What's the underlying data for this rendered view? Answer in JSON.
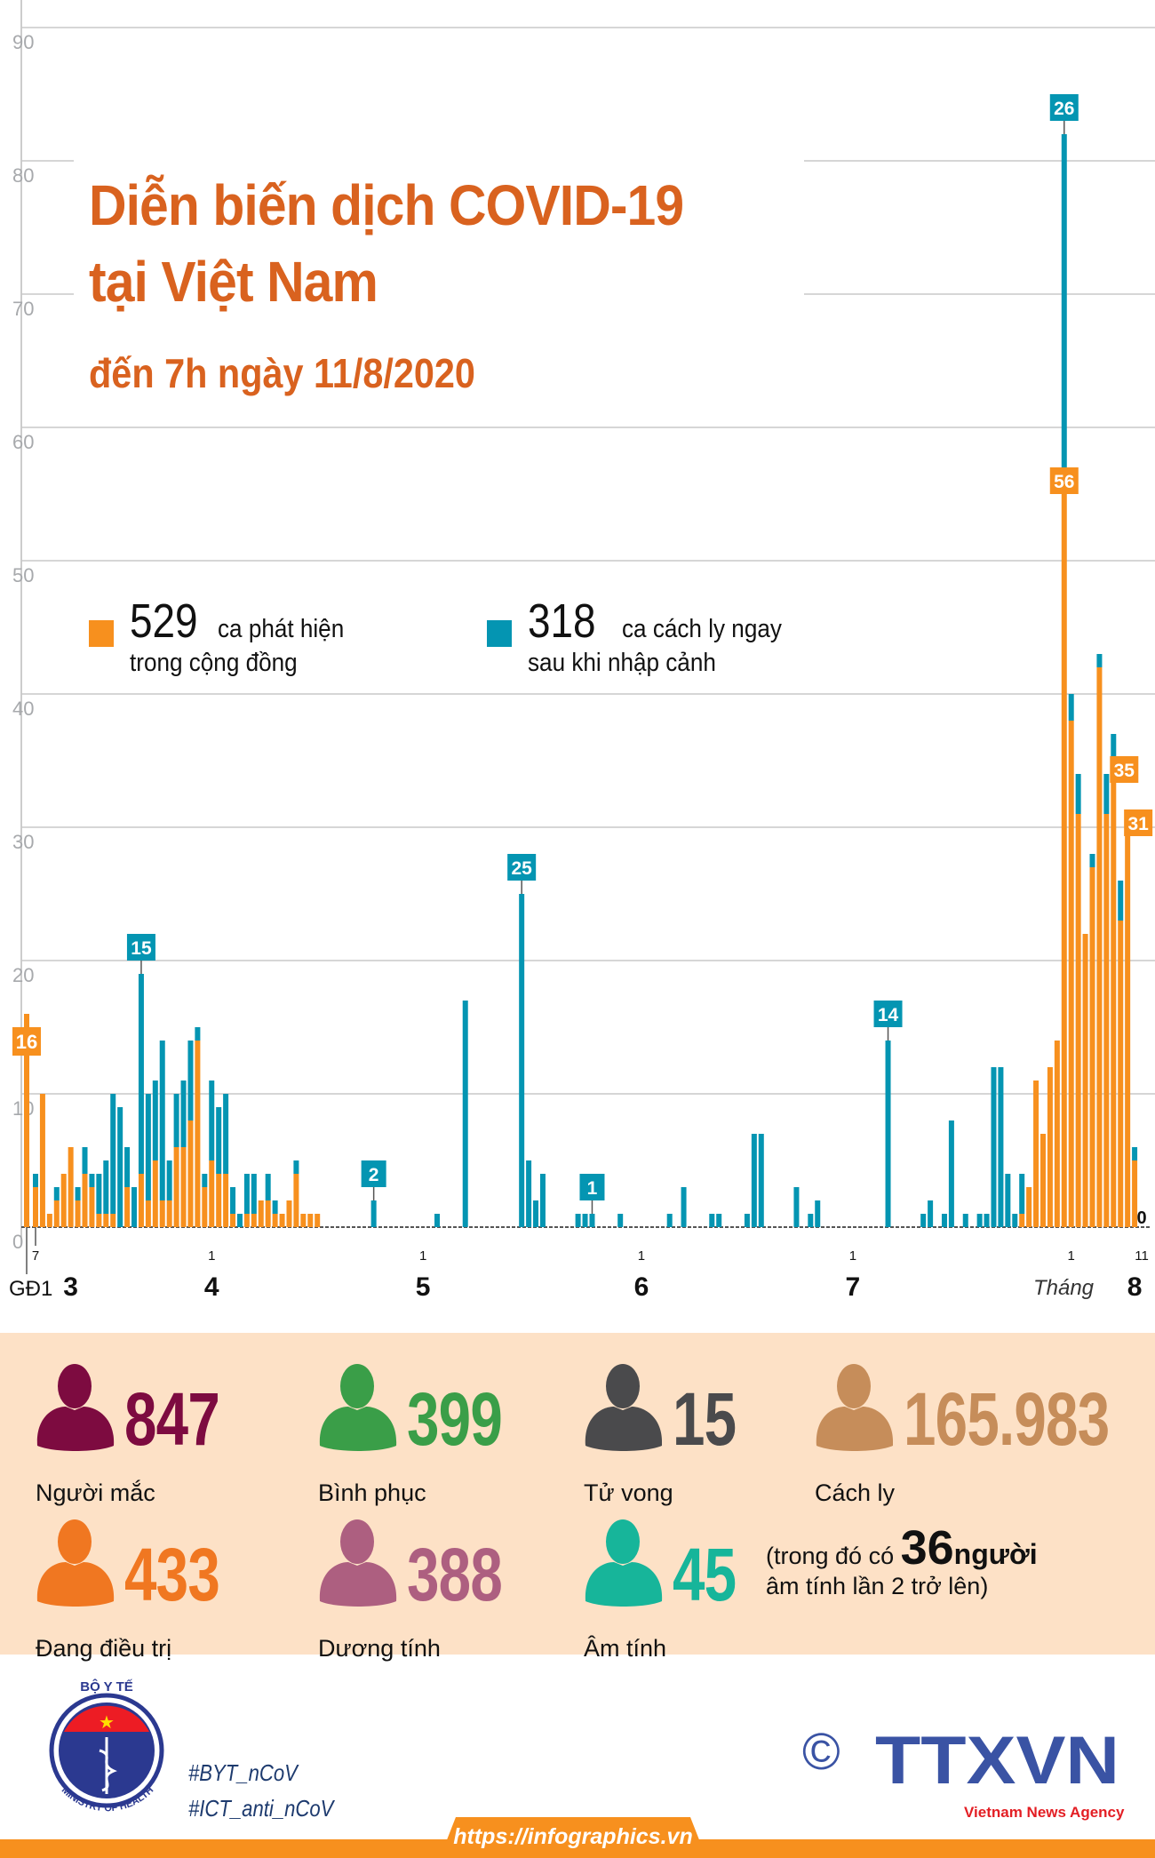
{
  "header": {
    "title_line1": "Diễn biến dịch COVID-19",
    "title_line2": "tại Việt Nam",
    "subtitle": "đến 7h ngày 11/8/2020"
  },
  "legend": [
    {
      "number": "529",
      "text1": "ca phát hiện",
      "text2": "trong cộng đồng",
      "color": "#f7901e"
    },
    {
      "number": "318",
      "text1": "ca cách ly ngay",
      "text2": "sau khi nhập cảnh",
      "color": "#0495b2"
    }
  ],
  "chart_data": {
    "type": "bar",
    "stacked": true,
    "ylim": [
      0,
      90
    ],
    "yticks": [
      "0",
      "10",
      "20",
      "30",
      "40",
      "50",
      "60",
      "70",
      "80",
      "90"
    ],
    "grid": true,
    "phase1": {
      "label": "GĐ1",
      "value": 16
    },
    "x_tick_labels": [
      {
        "date": "7/3",
        "text": "7"
      },
      {
        "date": "1/4",
        "text": "1"
      },
      {
        "date": "1/5",
        "text": "1"
      },
      {
        "date": "1/6",
        "text": "1"
      },
      {
        "date": "1/7",
        "text": "1"
      },
      {
        "date": "1/8",
        "text": "1"
      },
      {
        "date": "11/8",
        "text": "11"
      }
    ],
    "month_labels": [
      {
        "date": "12/3",
        "text": "3"
      },
      {
        "date": "1/4",
        "text": "4"
      },
      {
        "date": "1/5",
        "text": "5"
      },
      {
        "date": "1/6",
        "text": "6"
      },
      {
        "date": "1/7",
        "text": "7"
      },
      {
        "date": "10/8",
        "text": "8"
      }
    ],
    "month_word": "Tháng",
    "series": [
      {
        "name": "ca phát hiện trong cộng đồng",
        "color": "#f7901e"
      },
      {
        "name": "ca cách ly ngay sau khi nhập cảnh",
        "color": "#0495b2"
      }
    ],
    "days": [
      {
        "date": "7/3",
        "community": 3,
        "quarantine": 1
      },
      {
        "date": "8/3",
        "community": 10,
        "quarantine": 0
      },
      {
        "date": "9/3",
        "community": 1,
        "quarantine": 0
      },
      {
        "date": "10/3",
        "community": 2,
        "quarantine": 1
      },
      {
        "date": "11/3",
        "community": 4,
        "quarantine": 0
      },
      {
        "date": "12/3",
        "community": 6,
        "quarantine": 0
      },
      {
        "date": "13/3",
        "community": 2,
        "quarantine": 1
      },
      {
        "date": "14/3",
        "community": 4,
        "quarantine": 2
      },
      {
        "date": "15/3",
        "community": 3,
        "quarantine": 1
      },
      {
        "date": "16/3",
        "community": 1,
        "quarantine": 3
      },
      {
        "date": "17/3",
        "community": 1,
        "quarantine": 4
      },
      {
        "date": "18/3",
        "community": 1,
        "quarantine": 9
      },
      {
        "date": "19/3",
        "community": 0,
        "quarantine": 9
      },
      {
        "date": "20/3",
        "community": 3,
        "quarantine": 3
      },
      {
        "date": "21/3",
        "community": 0,
        "quarantine": 3
      },
      {
        "date": "22/3",
        "community": 4,
        "quarantine": 15
      },
      {
        "date": "23/3",
        "community": 2,
        "quarantine": 8
      },
      {
        "date": "24/3",
        "community": 5,
        "quarantine": 6
      },
      {
        "date": "25/3",
        "community": 2,
        "quarantine": 12
      },
      {
        "date": "26/3",
        "community": 2,
        "quarantine": 3
      },
      {
        "date": "27/3",
        "community": 6,
        "quarantine": 4
      },
      {
        "date": "28/3",
        "community": 6,
        "quarantine": 5
      },
      {
        "date": "29/3",
        "community": 8,
        "quarantine": 6
      },
      {
        "date": "30/3",
        "community": 14,
        "quarantine": 1
      },
      {
        "date": "31/3",
        "community": 3,
        "quarantine": 1
      },
      {
        "date": "1/4",
        "community": 5,
        "quarantine": 6
      },
      {
        "date": "2/4",
        "community": 4,
        "quarantine": 5
      },
      {
        "date": "3/4",
        "community": 4,
        "quarantine": 6
      },
      {
        "date": "4/4",
        "community": 1,
        "quarantine": 2
      },
      {
        "date": "5/4",
        "community": 0,
        "quarantine": 1
      },
      {
        "date": "6/4",
        "community": 1,
        "quarantine": 3
      },
      {
        "date": "7/4",
        "community": 1,
        "quarantine": 3
      },
      {
        "date": "8/4",
        "community": 2,
        "quarantine": 0
      },
      {
        "date": "9/4",
        "community": 2,
        "quarantine": 2
      },
      {
        "date": "10/4",
        "community": 1,
        "quarantine": 1
      },
      {
        "date": "11/4",
        "community": 1,
        "quarantine": 0
      },
      {
        "date": "12/4",
        "community": 2,
        "quarantine": 0
      },
      {
        "date": "13/4",
        "community": 4,
        "quarantine": 1
      },
      {
        "date": "14/4",
        "community": 1,
        "quarantine": 0
      },
      {
        "date": "15/4",
        "community": 1,
        "quarantine": 0
      },
      {
        "date": "16/4",
        "community": 1,
        "quarantine": 0
      },
      {
        "date": "24/4",
        "community": 0,
        "quarantine": 2
      },
      {
        "date": "3/5",
        "community": 0,
        "quarantine": 1
      },
      {
        "date": "7/5",
        "community": 0,
        "quarantine": 17
      },
      {
        "date": "15/5",
        "community": 0,
        "quarantine": 25
      },
      {
        "date": "16/5",
        "community": 0,
        "quarantine": 5
      },
      {
        "date": "17/5",
        "community": 0,
        "quarantine": 2
      },
      {
        "date": "18/5",
        "community": 0,
        "quarantine": 4
      },
      {
        "date": "23/5",
        "community": 0,
        "quarantine": 1
      },
      {
        "date": "24/5",
        "community": 0,
        "quarantine": 1
      },
      {
        "date": "25/5",
        "community": 0,
        "quarantine": 1
      },
      {
        "date": "29/5",
        "community": 0,
        "quarantine": 1
      },
      {
        "date": "5/6",
        "community": 0,
        "quarantine": 1
      },
      {
        "date": "7/6",
        "community": 0,
        "quarantine": 3
      },
      {
        "date": "11/6",
        "community": 0,
        "quarantine": 1
      },
      {
        "date": "12/6",
        "community": 0,
        "quarantine": 1
      },
      {
        "date": "16/6",
        "community": 0,
        "quarantine": 1
      },
      {
        "date": "17/6",
        "community": 0,
        "quarantine": 7
      },
      {
        "date": "18/6",
        "community": 0,
        "quarantine": 7
      },
      {
        "date": "23/6",
        "community": 0,
        "quarantine": 3
      },
      {
        "date": "25/6",
        "community": 0,
        "quarantine": 1
      },
      {
        "date": "26/6",
        "community": 0,
        "quarantine": 2
      },
      {
        "date": "6/7",
        "community": 0,
        "quarantine": 14
      },
      {
        "date": "11/7",
        "community": 0,
        "quarantine": 1
      },
      {
        "date": "12/7",
        "community": 0,
        "quarantine": 2
      },
      {
        "date": "14/7",
        "community": 0,
        "quarantine": 1
      },
      {
        "date": "15/7",
        "community": 0,
        "quarantine": 8
      },
      {
        "date": "17/7",
        "community": 0,
        "quarantine": 1
      },
      {
        "date": "19/7",
        "community": 0,
        "quarantine": 1
      },
      {
        "date": "20/7",
        "community": 0,
        "quarantine": 1
      },
      {
        "date": "21/7",
        "community": 0,
        "quarantine": 12
      },
      {
        "date": "22/7",
        "community": 0,
        "quarantine": 12
      },
      {
        "date": "23/7",
        "community": 0,
        "quarantine": 4
      },
      {
        "date": "24/7",
        "community": 0,
        "quarantine": 1
      },
      {
        "date": "25/7",
        "community": 1,
        "quarantine": 3
      },
      {
        "date": "26/7",
        "community": 3,
        "quarantine": 0
      },
      {
        "date": "27/7",
        "community": 11,
        "quarantine": 0
      },
      {
        "date": "28/7",
        "community": 7,
        "quarantine": 0
      },
      {
        "date": "29/7",
        "community": 12,
        "quarantine": 0
      },
      {
        "date": "30/7",
        "community": 14,
        "quarantine": 0
      },
      {
        "date": "31/7",
        "community": 56,
        "quarantine": 26
      },
      {
        "date": "1/8",
        "community": 38,
        "quarantine": 2
      },
      {
        "date": "2/8",
        "community": 31,
        "quarantine": 3
      },
      {
        "date": "3/8",
        "community": 22,
        "quarantine": 0
      },
      {
        "date": "4/8",
        "community": 27,
        "quarantine": 1
      },
      {
        "date": "5/8",
        "community": 42,
        "quarantine": 1
      },
      {
        "date": "6/8",
        "community": 31,
        "quarantine": 3
      },
      {
        "date": "7/8",
        "community": 35,
        "quarantine": 2
      },
      {
        "date": "8/8",
        "community": 23,
        "quarantine": 3
      },
      {
        "date": "9/8",
        "community": 31,
        "quarantine": 0
      },
      {
        "date": "10/8",
        "community": 5,
        "quarantine": 1
      },
      {
        "date": "11/8",
        "community": 0,
        "quarantine": 0
      }
    ],
    "annotations": [
      {
        "date": "22/3",
        "series": "quarantine",
        "text": "15"
      },
      {
        "date": "24/4",
        "series": "quarantine",
        "text": "2"
      },
      {
        "date": "15/5",
        "series": "quarantine",
        "text": "25"
      },
      {
        "date": "25/5",
        "series": "quarantine",
        "text": "1"
      },
      {
        "date": "6/7",
        "series": "quarantine",
        "text": "14"
      },
      {
        "date": "31/7",
        "series": "quarantine",
        "text": "26"
      },
      {
        "date": "31/7",
        "series": "community",
        "text": "56"
      },
      {
        "date": "7/8",
        "series": "community",
        "text": "35"
      },
      {
        "date": "9/8",
        "series": "community",
        "text": "31"
      },
      {
        "date": "11/8",
        "series": "none",
        "text": "0"
      }
    ]
  },
  "stats": [
    {
      "number": "847",
      "label": "Người mắc",
      "color": "#7d0b40"
    },
    {
      "number": "399",
      "label": "Bình phục",
      "color": "#3a9e48"
    },
    {
      "number": "15",
      "label": "Tử vong",
      "color": "#4a4a4c"
    },
    {
      "number": "165.983",
      "label": "Cách ly",
      "color": "#c68d5a"
    },
    {
      "number": "433",
      "label": "Đang điều trị",
      "color": "#f07721"
    },
    {
      "number": "388",
      "label": "Dương tính",
      "color": "#ad5f80"
    },
    {
      "number": "45",
      "label": "Âm tính",
      "color": "#17b59a"
    }
  ],
  "note": {
    "prefix": "(trong đó có ",
    "number": "36",
    "suffix": "người",
    "line2": "âm tính lần 2 trở lên)"
  },
  "footer": {
    "moh_logo_text": [
      "BỘ Y TẾ",
      "MINISTRY OF HEALTH"
    ],
    "hashtags": [
      "#BYT_nCoV",
      "#ICT_anti_nCoV"
    ],
    "copyright": "©",
    "agency_logo": "TTXVN",
    "agency_name": "Vietnam News Agency",
    "url": "https://infographics.vn"
  }
}
